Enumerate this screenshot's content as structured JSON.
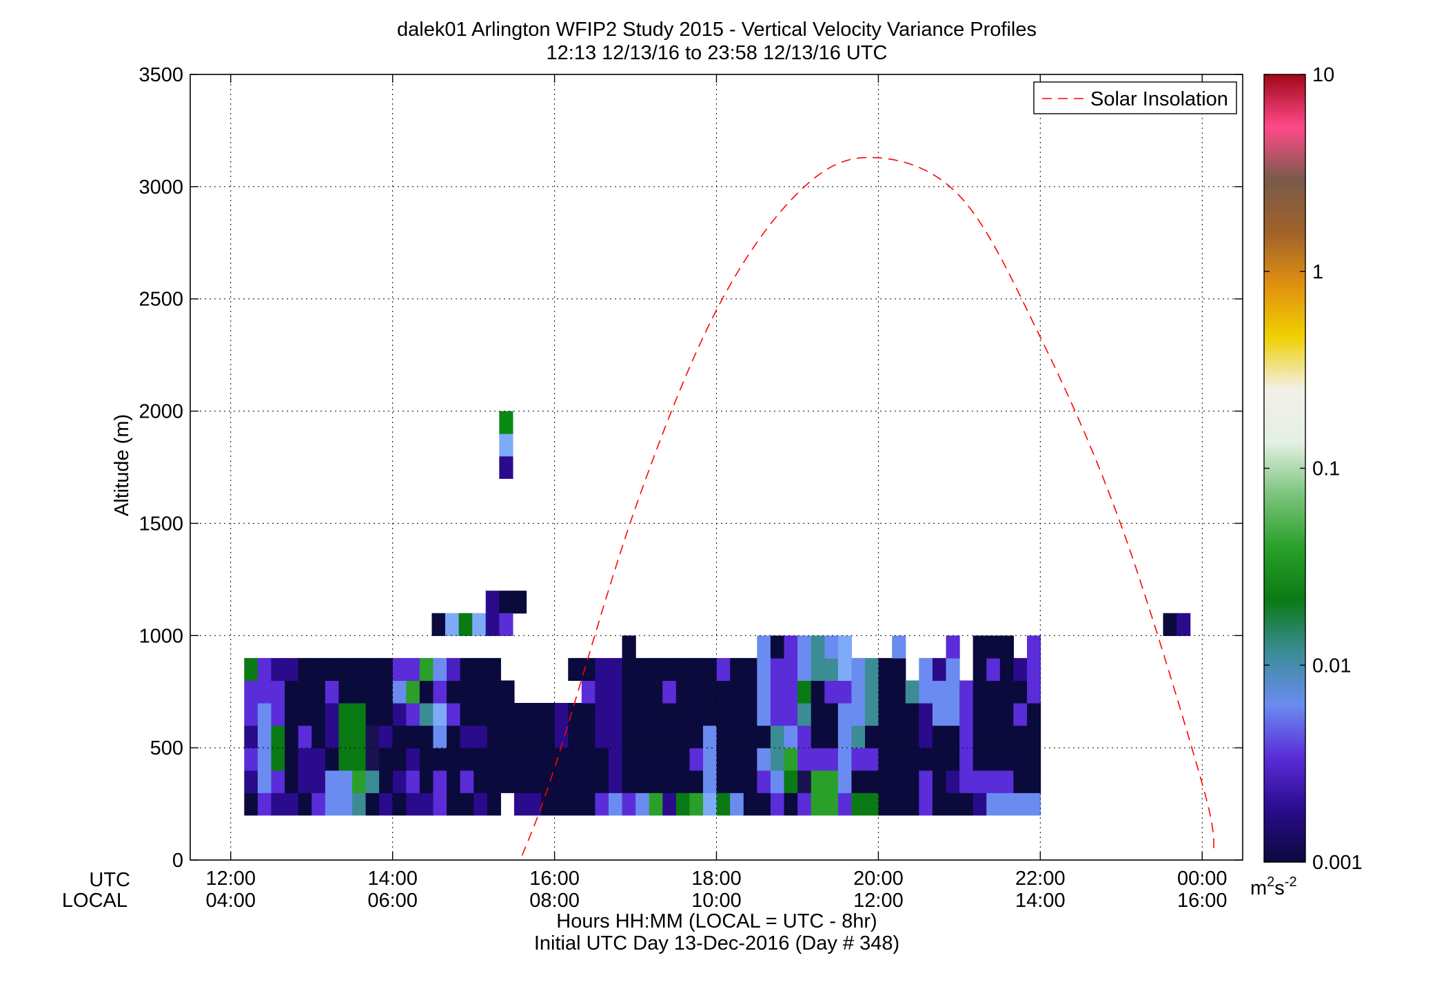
{
  "chart_data": {
    "type": "heatmap",
    "title": "dalek01 Arlington WFIP2 Study 2015 - Vertical Velocity Variance Profiles",
    "subtitle": "12:13 12/13/16 to 23:58 12/13/16  UTC",
    "ylabel": "Altitude (m)",
    "xlabel": "Hours HH:MM  (LOCAL = UTC - 8hr)",
    "xlabel2": "Initial UTC Day 13-Dec-2016 (Day # 348)",
    "x_row_labels": [
      "UTC",
      "LOCAL"
    ],
    "ylim": [
      0,
      3500
    ],
    "xlim_hours_utc": [
      11.5,
      24.5
    ],
    "y_ticks": [
      "0",
      "500",
      "1000",
      "1500",
      "2000",
      "2500",
      "3000",
      "3500"
    ],
    "x_ticks_utc": [
      "12:00",
      "14:00",
      "16:00",
      "18:00",
      "20:00",
      "22:00",
      "00:00"
    ],
    "x_ticks_local": [
      "04:00",
      "06:00",
      "08:00",
      "10:00",
      "12:00",
      "14:00",
      "16:00"
    ],
    "grid": true,
    "legend": {
      "placement": "top-right",
      "entries": [
        "Solar Insolation"
      ]
    },
    "solar_insolation": {
      "style": "red dashed",
      "color": "#ff0000",
      "x_hours_utc": [
        15.6,
        16.0,
        17.0,
        18.0,
        19.0,
        19.9,
        21.0,
        22.0,
        23.0,
        24.0,
        24.15
      ],
      "altitude_m": [
        20,
        410,
        1570,
        2450,
        2970,
        3130,
        2960,
        2330,
        1490,
        340,
        30
      ]
    },
    "colorbar": {
      "label": "m^2s^-2",
      "scale": "log",
      "range": [
        0.001,
        10
      ],
      "tick_labels": [
        "0.001",
        "0.01",
        "0.1",
        "1",
        "10"
      ],
      "colors": [
        "#0b0a3c",
        "#2a0b8c",
        "#5a2dd8",
        "#6a8cf0",
        "#3c8c96",
        "#0a7a14",
        "#2aa02a",
        "#7cc47c",
        "#e4f0e4",
        "#f2f0ea",
        "#f0d000",
        "#e09010",
        "#a0622a",
        "#7a5a4a",
        "#ff4a8a",
        "#a00818"
      ]
    },
    "bins": {
      "time_start_hours_utc": 12.25,
      "time_step_hours": 0.1667,
      "altitude_start_m": 200,
      "altitude_step_m": 100
    },
    "palette": [
      "#0b0a3c",
      "#2a0b8c",
      "#5a2dd8",
      "#6a8cf0",
      "#3c8c96",
      "#0a7a14",
      "#2aa02a",
      "#1a1250",
      "#4a1fc0",
      "#7eaaf8"
    ],
    "columns": [
      "0121225",
      "2333322",
      "1255221",
      "1000001",
      "0112000",
      "2110000",
      "3301120",
      "3355500",
      "4655500",
      "0477000",
      "1001000",
      "0100132",
      "1210262",
      "1000406",
      "2203923",
      "0000208",
      "0201000",
      "1001000",
      "0000000",
      "-00000-",
      "10000--",
      "10000--",
      "00000--",
      "00011--",
      "00000-0",
      "0000020",
      "2001111",
      "3111111",
      "20000000",
      "3000000",
      "6000000",
      "1000020",
      "5000000",
      "6020000",
      "9333000",
      "5000002",
      "3000000",
      "0000000",
      "02303333",
      "23442220",
      "05632222",
      "27224533",
      "66200044",
      "66200243",
      "23333299",
      "5024333",
      "5020444",
      "0000000",
      "00000003",
      "000004",
      "2201133",
      "0000331",
      "01003332",
      "022222",
      "12000000",
      "32000020",
      "32000000",
      "3000201",
      "30000222"
    ],
    "upper_cells": [
      {
        "hour_utc": 15.4,
        "altitude_m": 1750,
        "color": "#2a0b8c"
      },
      {
        "hour_utc": 15.4,
        "altitude_m": 1850,
        "color": "#7eaaf8"
      },
      {
        "hour_utc": 15.4,
        "altitude_m": 1950,
        "color": "#0a8a14"
      },
      {
        "hour_utc": 15.233,
        "altitude_m": 1150,
        "color": "#2a0b8c"
      },
      {
        "hour_utc": 15.4,
        "altitude_m": 1150,
        "color": "#0b0a3c"
      },
      {
        "hour_utc": 15.567,
        "altitude_m": 1150,
        "color": "#0b0a3c"
      },
      {
        "hour_utc": 14.567,
        "altitude_m": 1050,
        "color": "#0b0a3c"
      },
      {
        "hour_utc": 14.733,
        "altitude_m": 1050,
        "color": "#7eaaf8"
      },
      {
        "hour_utc": 14.9,
        "altitude_m": 1050,
        "color": "#0a7a14"
      },
      {
        "hour_utc": 15.067,
        "altitude_m": 1050,
        "color": "#7eaaf8"
      },
      {
        "hour_utc": 15.233,
        "altitude_m": 1050,
        "color": "#2a0b8c"
      },
      {
        "hour_utc": 15.4,
        "altitude_m": 1050,
        "color": "#5a2dd8"
      },
      {
        "hour_utc": 23.6,
        "altitude_m": 1050,
        "color": "#0b0a3c"
      },
      {
        "hour_utc": 23.767,
        "altitude_m": 1050,
        "color": "#2a0b8c"
      }
    ]
  }
}
